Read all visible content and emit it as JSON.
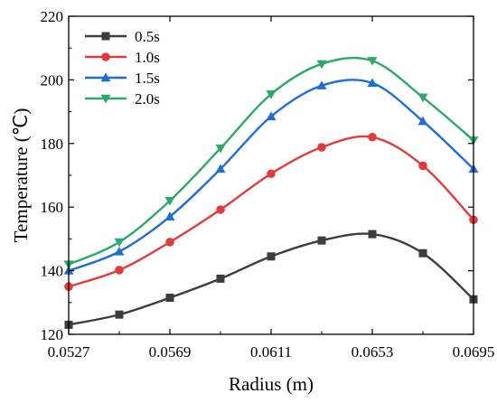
{
  "chart_data": {
    "type": "line",
    "title": "",
    "xlabel": "Radius (m)",
    "ylabel": "Temperature (℃)",
    "x": [
      0.0527,
      0.0548,
      0.0569,
      0.059,
      0.0611,
      0.0632,
      0.0653,
      0.0674,
      0.0695
    ],
    "x_tick_labels": [
      "0.0527",
      "0.0569",
      "0.0611",
      "0.0653",
      "0.0695"
    ],
    "x_tick_values": [
      0.0527,
      0.0569,
      0.0611,
      0.0653,
      0.0695
    ],
    "y_ticks": [
      120,
      140,
      160,
      180,
      200,
      220
    ],
    "xlim": [
      0.0527,
      0.0695
    ],
    "ylim": [
      120,
      220
    ],
    "legend_position": "top-left",
    "series": [
      {
        "name": "0.5s",
        "color": "#3d3d3d",
        "marker": "square",
        "values": [
          123,
          126.2,
          131.5,
          137.5,
          144.5,
          149.5,
          151.5,
          145.5,
          131
        ]
      },
      {
        "name": "1.0s",
        "color": "#e03c3c",
        "marker": "circle",
        "values": [
          135,
          140.2,
          149,
          159.2,
          170.5,
          178.8,
          182,
          173,
          156
        ]
      },
      {
        "name": "1.5s",
        "color": "#1f6fd1",
        "marker": "triangle-up",
        "values": [
          140,
          146,
          157,
          172,
          188.5,
          198.2,
          199,
          187,
          172
        ]
      },
      {
        "name": "2.0s",
        "color": "#2ea86a",
        "marker": "triangle-down",
        "values": [
          142,
          149,
          162,
          178.5,
          195.5,
          205,
          206,
          194.5,
          181
        ]
      }
    ]
  }
}
